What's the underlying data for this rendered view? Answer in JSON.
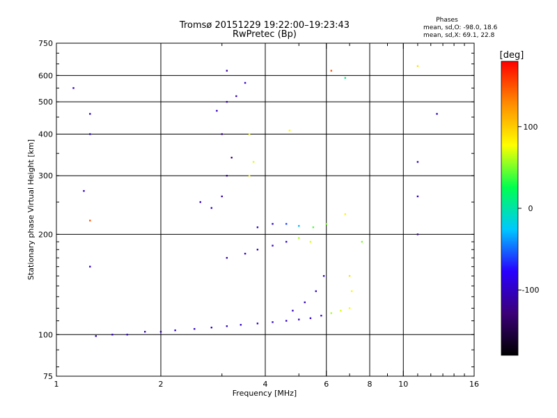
{
  "chart_data": {
    "type": "scatter",
    "title": "Tromsø 20151229 19:22:00–19:23:43",
    "subtitle": "RwPretec (Bp)",
    "xlabel": "Frequency [MHz]",
    "ylabel": "Stationary phase Virtual Height [km]",
    "x_scale": "log",
    "y_scale": "log",
    "xlim": [
      1,
      16
    ],
    "ylim": [
      75,
      750
    ],
    "x_ticks": [
      1,
      2,
      4,
      6,
      8,
      10,
      16
    ],
    "x_tick_labels": [
      "1",
      "2",
      "4",
      "6",
      "8",
      "10",
      "16"
    ],
    "x_gridlines": [
      2,
      4,
      6,
      8,
      10
    ],
    "y_ticks": [
      75,
      100,
      200,
      300,
      400,
      500,
      600,
      750
    ],
    "y_tick_labels": [
      "75",
      "100",
      "200",
      "300",
      "400",
      "500",
      "600",
      "750"
    ],
    "y_gridlines": [
      100,
      200,
      300,
      400,
      500,
      600
    ],
    "grid": true,
    "phases_box": {
      "title": "Phases",
      "line_o": "mean, sd,O: -98.0, 18.6",
      "line_x": "mean, sd,X: 69.1, 22.8"
    },
    "colorbar": {
      "label": "[deg]",
      "range": [
        -180,
        180
      ],
      "ticks": [
        100,
        0,
        -100
      ],
      "tick_labels": [
        "100",
        "0",
        "-100"
      ],
      "colors": [
        "#000000",
        "#3c0078",
        "#2800ff",
        "#00c8ff",
        "#00ff50",
        "#ffff00",
        "#ff8c00",
        "#ff0000"
      ]
    },
    "series": [
      {
        "points": [
          {
            "f": 1.3,
            "h": 99,
            "p": -100
          },
          {
            "f": 1.45,
            "h": 100,
            "p": -105
          },
          {
            "f": 1.6,
            "h": 100,
            "p": -98
          },
          {
            "f": 1.8,
            "h": 102,
            "p": -100
          },
          {
            "f": 2.0,
            "h": 102,
            "p": -102
          },
          {
            "f": 2.2,
            "h": 103,
            "p": -97
          },
          {
            "f": 2.5,
            "h": 104,
            "p": -100
          },
          {
            "f": 2.8,
            "h": 105,
            "p": -95
          },
          {
            "f": 3.1,
            "h": 106,
            "p": -100
          },
          {
            "f": 3.4,
            "h": 107,
            "p": -98
          },
          {
            "f": 3.8,
            "h": 108,
            "p": -100
          },
          {
            "f": 4.2,
            "h": 109,
            "p": -95
          },
          {
            "f": 4.6,
            "h": 110,
            "p": -98
          },
          {
            "f": 5.0,
            "h": 111,
            "p": -100
          },
          {
            "f": 5.4,
            "h": 112,
            "p": -96
          },
          {
            "f": 5.8,
            "h": 114,
            "p": -90
          },
          {
            "f": 6.2,
            "h": 116,
            "p": 60
          },
          {
            "f": 6.6,
            "h": 118,
            "p": 70
          },
          {
            "f": 7.0,
            "h": 120,
            "p": 75
          },
          {
            "f": 7.1,
            "h": 135,
            "p": 80
          },
          {
            "f": 7.0,
            "h": 150,
            "p": 90
          },
          {
            "f": 4.8,
            "h": 118,
            "p": -100
          },
          {
            "f": 5.2,
            "h": 125,
            "p": -98
          },
          {
            "f": 5.6,
            "h": 135,
            "p": -95
          },
          {
            "f": 5.9,
            "h": 150,
            "p": -100
          },
          {
            "f": 3.1,
            "h": 170,
            "p": -105
          },
          {
            "f": 3.5,
            "h": 175,
            "p": -100
          },
          {
            "f": 3.8,
            "h": 180,
            "p": -100
          },
          {
            "f": 4.2,
            "h": 185,
            "p": -95
          },
          {
            "f": 4.6,
            "h": 190,
            "p": -90
          },
          {
            "f": 5.0,
            "h": 195,
            "p": 60
          },
          {
            "f": 5.4,
            "h": 190,
            "p": 70
          },
          {
            "f": 3.8,
            "h": 210,
            "p": -100
          },
          {
            "f": 4.2,
            "h": 215,
            "p": -98
          },
          {
            "f": 4.6,
            "h": 215,
            "p": -60
          },
          {
            "f": 5.0,
            "h": 212,
            "p": -30
          },
          {
            "f": 5.5,
            "h": 210,
            "p": 40
          },
          {
            "f": 6.0,
            "h": 215,
            "p": 50
          },
          {
            "f": 6.8,
            "h": 230,
            "p": 80
          },
          {
            "f": 2.6,
            "h": 250,
            "p": -100
          },
          {
            "f": 2.8,
            "h": 240,
            "p": -95
          },
          {
            "f": 3.0,
            "h": 260,
            "p": -110
          },
          {
            "f": 3.1,
            "h": 300,
            "p": -120
          },
          {
            "f": 3.2,
            "h": 340,
            "p": -125
          },
          {
            "f": 3.0,
            "h": 400,
            "p": -118
          },
          {
            "f": 2.9,
            "h": 470,
            "p": -100
          },
          {
            "f": 3.1,
            "h": 500,
            "p": -105
          },
          {
            "f": 3.3,
            "h": 520,
            "p": -110
          },
          {
            "f": 3.5,
            "h": 570,
            "p": -100
          },
          {
            "f": 3.1,
            "h": 620,
            "p": -112
          },
          {
            "f": 3.6,
            "h": 300,
            "p": 80
          },
          {
            "f": 3.7,
            "h": 330,
            "p": 70
          },
          {
            "f": 3.6,
            "h": 400,
            "p": 75
          },
          {
            "f": 4.7,
            "h": 410,
            "p": 80
          },
          {
            "f": 1.25,
            "h": 460,
            "p": -100
          },
          {
            "f": 1.25,
            "h": 400,
            "p": -98
          },
          {
            "f": 1.25,
            "h": 220,
            "p": 150
          },
          {
            "f": 1.2,
            "h": 270,
            "p": -100
          },
          {
            "f": 1.25,
            "h": 160,
            "p": -100
          },
          {
            "f": 11,
            "h": 330,
            "p": -100
          },
          {
            "f": 11,
            "h": 260,
            "p": -98
          },
          {
            "f": 11,
            "h": 200,
            "p": -120
          },
          {
            "f": 12.5,
            "h": 460,
            "p": -100
          },
          {
            "f": 11,
            "h": 640,
            "p": 90
          },
          {
            "f": 6.2,
            "h": 620,
            "p": 150
          },
          {
            "f": 6.8,
            "h": 590,
            "p": 10
          },
          {
            "f": 1.12,
            "h": 550,
            "p": -100
          },
          {
            "f": 7.6,
            "h": 190,
            "p": 50
          }
        ]
      }
    ]
  }
}
